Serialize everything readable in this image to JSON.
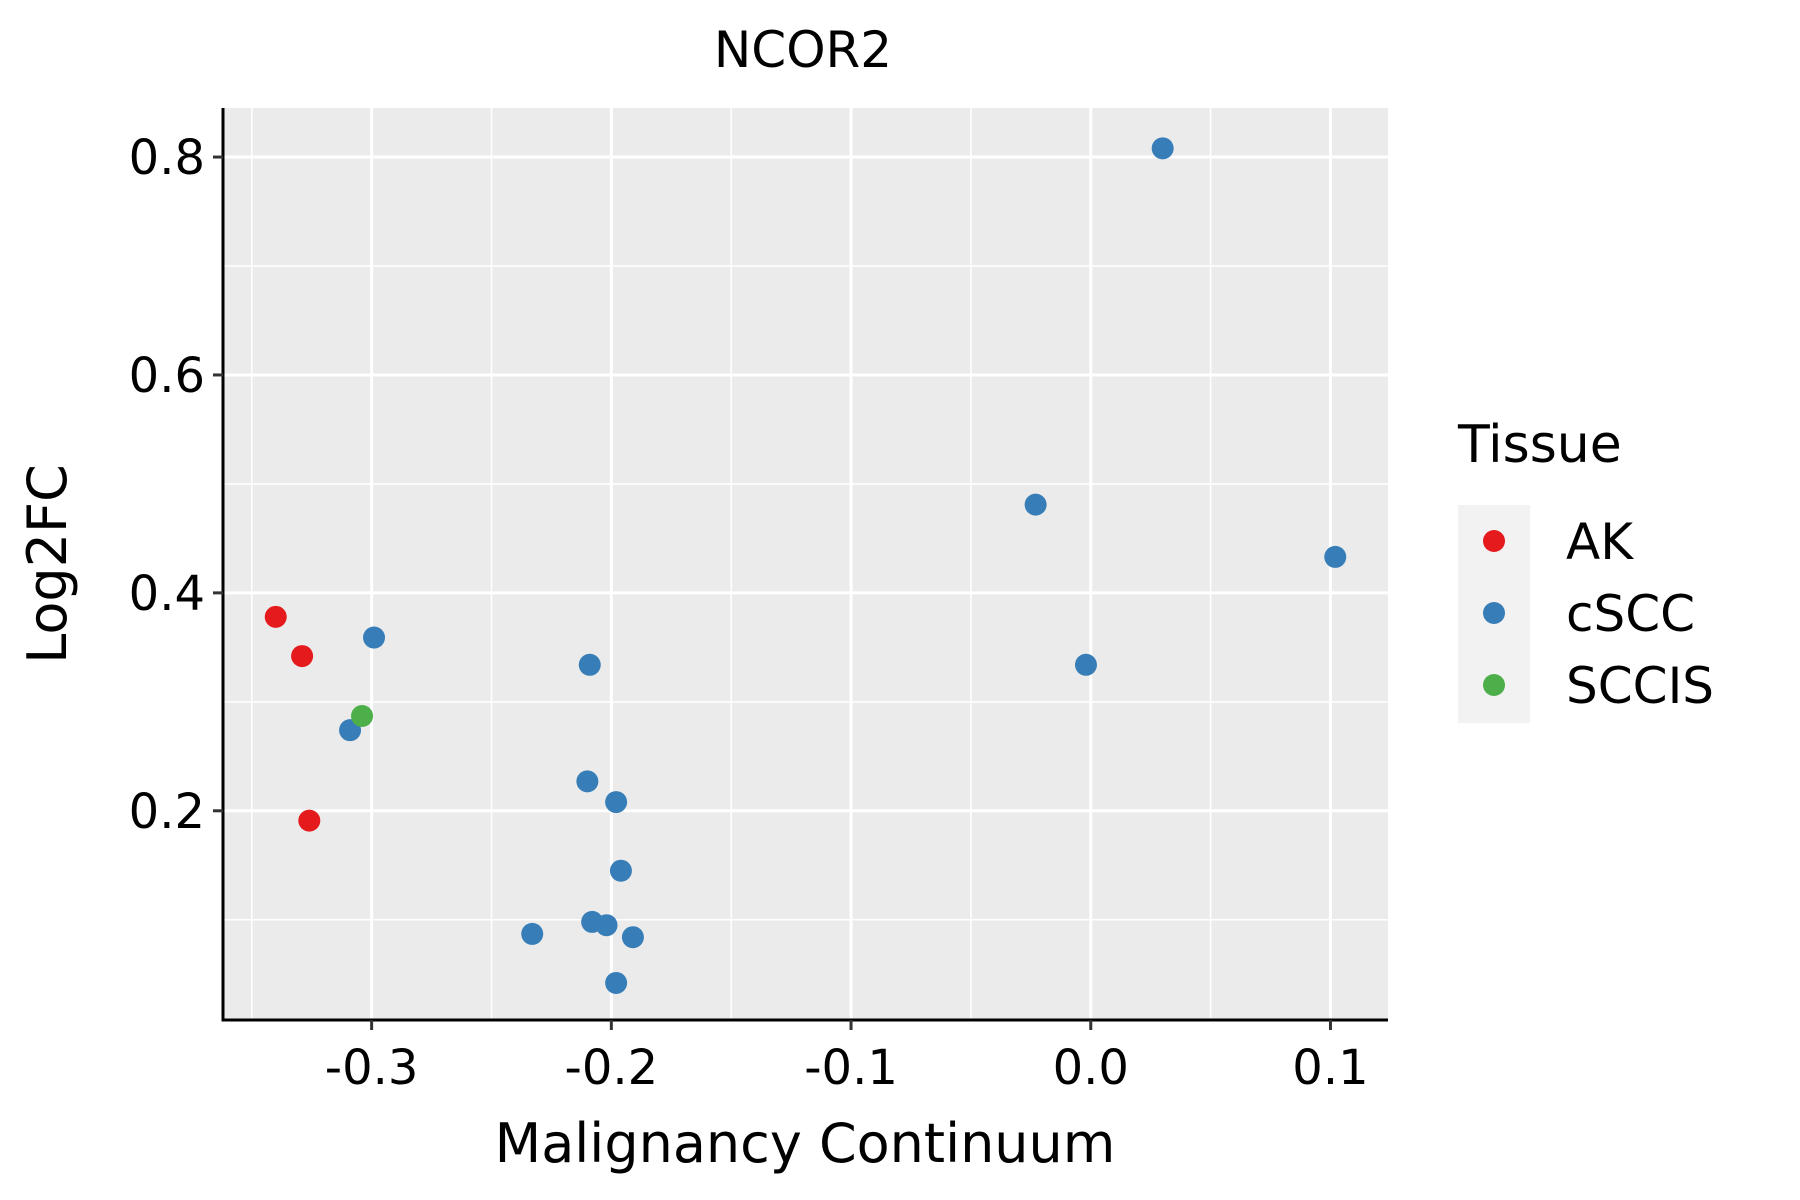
{
  "chart_data": {
    "type": "scatter",
    "title": "NCOR2",
    "xlabel": "Malignancy Continuum",
    "ylabel": "Log2FC",
    "xlim": [
      -0.362,
      0.124
    ],
    "ylim": [
      0.008,
      0.845
    ],
    "x_ticks": [
      -0.3,
      -0.2,
      -0.1,
      0.0,
      0.1
    ],
    "x_tick_labels": [
      "-0.3",
      "-0.2",
      "-0.1",
      "0.0",
      "0.1"
    ],
    "y_ticks": [
      0.2,
      0.4,
      0.6,
      0.8
    ],
    "y_tick_labels": [
      "0.2",
      "0.4",
      "0.6",
      "0.8"
    ],
    "grid": true,
    "legend": {
      "title": "Tissue",
      "position": "right"
    },
    "series": [
      {
        "name": "AK",
        "color": "#E41A1C",
        "points": [
          {
            "x": -0.34,
            "y": 0.378
          },
          {
            "x": -0.329,
            "y": 0.342
          },
          {
            "x": -0.326,
            "y": 0.191
          }
        ]
      },
      {
        "name": "cSCC",
        "color": "#377EB8",
        "points": [
          {
            "x": 0.03,
            "y": 0.808
          },
          {
            "x": -0.023,
            "y": 0.481
          },
          {
            "x": 0.102,
            "y": 0.433
          },
          {
            "x": -0.002,
            "y": 0.334
          },
          {
            "x": -0.299,
            "y": 0.359
          },
          {
            "x": -0.209,
            "y": 0.334
          },
          {
            "x": -0.309,
            "y": 0.274
          },
          {
            "x": -0.21,
            "y": 0.227
          },
          {
            "x": -0.198,
            "y": 0.208
          },
          {
            "x": -0.196,
            "y": 0.145
          },
          {
            "x": -0.208,
            "y": 0.098
          },
          {
            "x": -0.202,
            "y": 0.095
          },
          {
            "x": -0.233,
            "y": 0.087
          },
          {
            "x": -0.191,
            "y": 0.084
          },
          {
            "x": -0.198,
            "y": 0.042
          }
        ]
      },
      {
        "name": "SCCIS",
        "color": "#4DAF4A",
        "points": [
          {
            "x": -0.304,
            "y": 0.287
          }
        ]
      }
    ]
  }
}
